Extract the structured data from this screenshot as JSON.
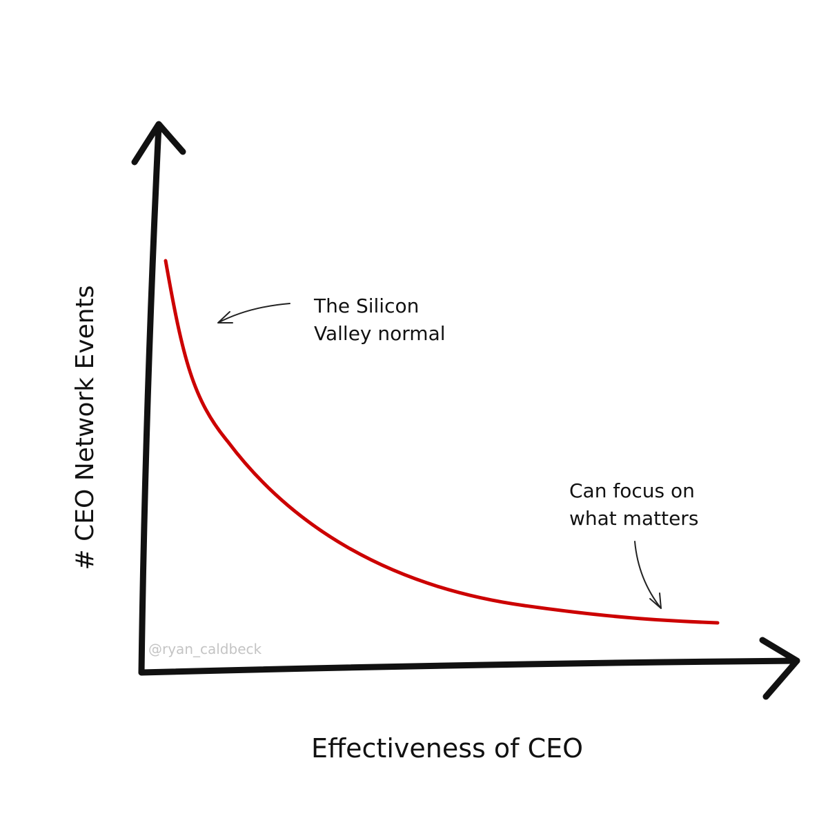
{
  "chart_data": {
    "type": "line",
    "color": "#cc0000",
    "x_label": "Effectiveness of CEO",
    "y_label": "# CEO Network Events",
    "annotations": [
      [
        "The Silicon",
        "Valley normal"
      ],
      [
        "Can focus on",
        "what matters"
      ]
    ],
    "watermark": "@ryan_caldbeck"
  }
}
